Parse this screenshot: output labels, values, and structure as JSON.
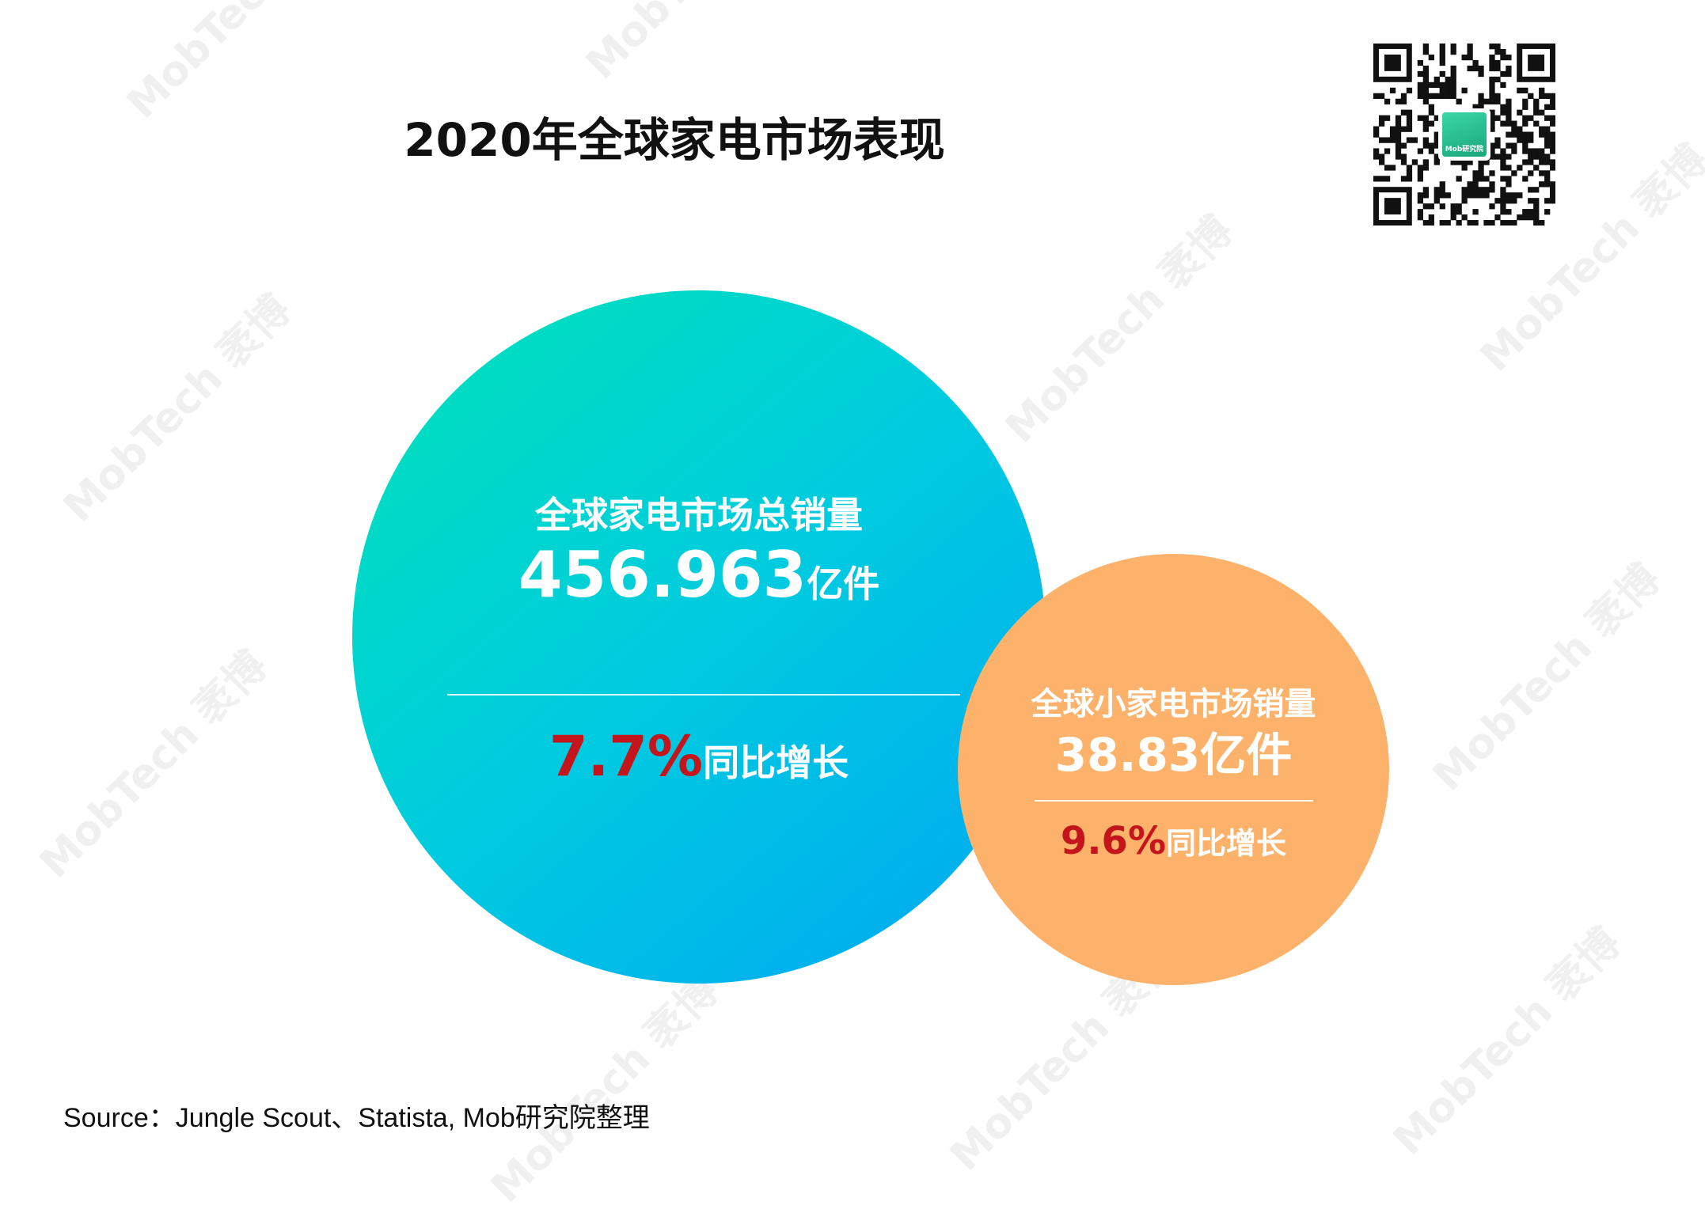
{
  "chart_data": {
    "type": "bubble",
    "title": "2020年全球家电市场表现",
    "bubbles": [
      {
        "label": "全球家电市场总销量",
        "value": 456.963,
        "value_text": "456.963",
        "unit": "亿件",
        "growth_text": "7.7%",
        "growth": 7.7,
        "growth_label": "同比增长",
        "color": "#00d0d8"
      },
      {
        "label": "全球小家电市场销量",
        "value": 38.83,
        "value_text": "38.83",
        "unit": "亿件",
        "growth_text": "9.6%",
        "growth": 9.6,
        "growth_label": "同比增长",
        "color": "#fdb26c"
      }
    ]
  },
  "source": "Source：Jungle Scout、Statista, Mob研究院整理",
  "qr_badge_text": "Mob研究院",
  "watermark": "MobTech 袤博",
  "colors": {
    "growth_red": "#c4151c",
    "title": "#111111"
  }
}
